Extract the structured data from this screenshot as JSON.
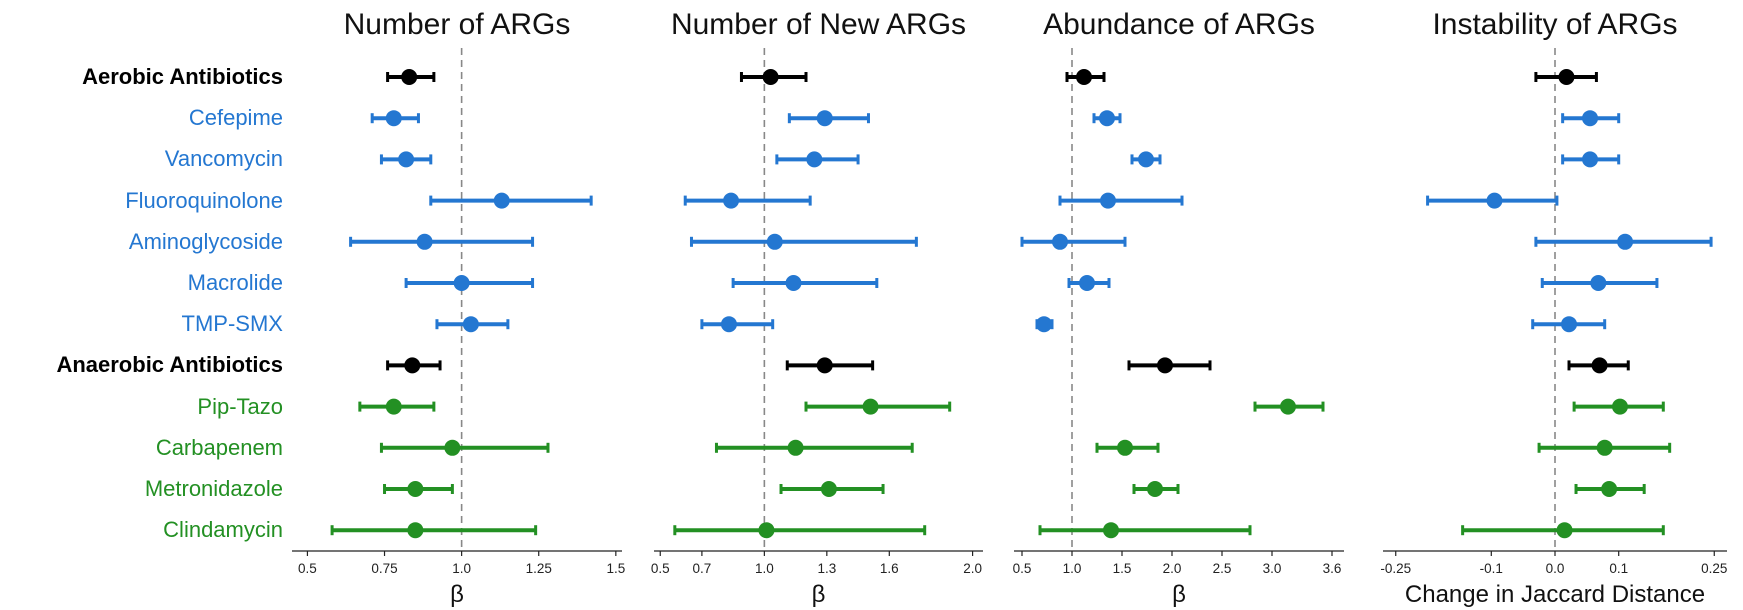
{
  "colors": {
    "group": "#000000",
    "aerobic": "#2477d1",
    "anaerobic": "#239023",
    "reference_line": "#888888",
    "axis": "#222222"
  },
  "rows": [
    {
      "label": "Aerobic Antibiotics",
      "kind": "group"
    },
    {
      "label": "Cefepime",
      "kind": "aerobic"
    },
    {
      "label": "Vancomycin",
      "kind": "aerobic"
    },
    {
      "label": "Fluoroquinolone",
      "kind": "aerobic"
    },
    {
      "label": "Aminoglycoside",
      "kind": "aerobic"
    },
    {
      "label": "Macrolide",
      "kind": "aerobic"
    },
    {
      "label": "TMP-SMX",
      "kind": "aerobic"
    },
    {
      "label": "Anaerobic Antibiotics",
      "kind": "group"
    },
    {
      "label": "Pip-Tazo",
      "kind": "anaerobic"
    },
    {
      "label": "Carbapenem",
      "kind": "anaerobic"
    },
    {
      "label": "Metronidazole",
      "kind": "anaerobic"
    },
    {
      "label": "Clindamycin",
      "kind": "anaerobic"
    }
  ],
  "chart_data": [
    {
      "type": "scatter",
      "title": "Number of ARGs",
      "xlabel": "β",
      "ticks": [
        "0.5",
        "0.75",
        "1.0",
        "1.25",
        "1.5"
      ],
      "tick_values": [
        0.5,
        0.75,
        1.0,
        1.25,
        1.5
      ],
      "xlim": [
        0.45,
        1.52
      ],
      "reference": 1.0,
      "points": [
        {
          "est": 0.83,
          "lo": 0.76,
          "hi": 0.91
        },
        {
          "est": 0.78,
          "lo": 0.71,
          "hi": 0.86
        },
        {
          "est": 0.82,
          "lo": 0.74,
          "hi": 0.9
        },
        {
          "est": 1.13,
          "lo": 0.9,
          "hi": 1.42
        },
        {
          "est": 0.88,
          "lo": 0.64,
          "hi": 1.23
        },
        {
          "est": 1.0,
          "lo": 0.82,
          "hi": 1.23
        },
        {
          "est": 1.03,
          "lo": 0.92,
          "hi": 1.15
        },
        {
          "est": 0.84,
          "lo": 0.76,
          "hi": 0.93
        },
        {
          "est": 0.78,
          "lo": 0.67,
          "hi": 0.91
        },
        {
          "est": 0.97,
          "lo": 0.74,
          "hi": 1.28
        },
        {
          "est": 0.85,
          "lo": 0.75,
          "hi": 0.97
        },
        {
          "est": 0.85,
          "lo": 0.58,
          "hi": 1.24
        }
      ]
    },
    {
      "type": "scatter",
      "title": "Number of New ARGs",
      "xlabel": "β",
      "ticks": [
        "0.5",
        "0.7",
        "1.0",
        "1.3",
        "1.6",
        "2.0"
      ],
      "tick_values": [
        0.5,
        0.7,
        1.0,
        1.3,
        1.6,
        2.0
      ],
      "xlim": [
        0.47,
        2.05
      ],
      "reference": 1.0,
      "points": [
        {
          "est": 1.03,
          "lo": 0.89,
          "hi": 1.2
        },
        {
          "est": 1.29,
          "lo": 1.12,
          "hi": 1.5
        },
        {
          "est": 1.24,
          "lo": 1.06,
          "hi": 1.45
        },
        {
          "est": 0.84,
          "lo": 0.62,
          "hi": 1.22
        },
        {
          "est": 1.05,
          "lo": 0.65,
          "hi": 1.73
        },
        {
          "est": 1.14,
          "lo": 0.85,
          "hi": 1.54
        },
        {
          "est": 0.83,
          "lo": 0.7,
          "hi": 1.04
        },
        {
          "est": 1.29,
          "lo": 1.11,
          "hi": 1.52
        },
        {
          "est": 1.51,
          "lo": 1.2,
          "hi": 1.89
        },
        {
          "est": 1.15,
          "lo": 0.77,
          "hi": 1.71
        },
        {
          "est": 1.31,
          "lo": 1.08,
          "hi": 1.57
        },
        {
          "est": 1.01,
          "lo": 0.57,
          "hi": 1.77
        }
      ]
    },
    {
      "type": "scatter",
      "title": "Abundance of ARGs",
      "xlabel": "β",
      "ticks": [
        "0.5",
        "1.0",
        "1.5",
        "2.0",
        "2.5",
        "3.0",
        "3.6"
      ],
      "tick_values": [
        0.5,
        1.0,
        1.5,
        2.0,
        2.5,
        3.0,
        3.6
      ],
      "xlim": [
        0.42,
        3.72
      ],
      "reference": 1.0,
      "points": [
        {
          "est": 1.12,
          "lo": 0.95,
          "hi": 1.32
        },
        {
          "est": 1.35,
          "lo": 1.22,
          "hi": 1.48
        },
        {
          "est": 1.74,
          "lo": 1.6,
          "hi": 1.88
        },
        {
          "est": 1.36,
          "lo": 0.88,
          "hi": 2.1
        },
        {
          "est": 0.88,
          "lo": 0.5,
          "hi": 1.53
        },
        {
          "est": 1.15,
          "lo": 0.97,
          "hi": 1.37
        },
        {
          "est": 0.72,
          "lo": 0.65,
          "hi": 0.8
        },
        {
          "est": 1.93,
          "lo": 1.57,
          "hi": 2.38
        },
        {
          "est": 3.16,
          "lo": 2.83,
          "hi": 3.51
        },
        {
          "est": 1.53,
          "lo": 1.25,
          "hi": 1.86
        },
        {
          "est": 1.83,
          "lo": 1.62,
          "hi": 2.06
        },
        {
          "est": 1.39,
          "lo": 0.68,
          "hi": 2.78
        }
      ]
    },
    {
      "type": "scatter",
      "title": "Instability of ARGs",
      "xlabel": "Change in Jaccard Distance",
      "ticks": [
        "-0.25",
        "-0.1",
        "0.0",
        "0.1",
        "0.25"
      ],
      "tick_values": [
        -0.25,
        -0.1,
        0.0,
        0.1,
        0.25
      ],
      "xlim": [
        -0.27,
        0.27
      ],
      "reference": 0.0,
      "points": [
        {
          "est": 0.018,
          "lo": -0.03,
          "hi": 0.065
        },
        {
          "est": 0.055,
          "lo": 0.012,
          "hi": 0.1
        },
        {
          "est": 0.055,
          "lo": 0.012,
          "hi": 0.1
        },
        {
          "est": -0.095,
          "lo": -0.2,
          "hi": 0.003
        },
        {
          "est": 0.11,
          "lo": -0.03,
          "hi": 0.245
        },
        {
          "est": 0.068,
          "lo": -0.02,
          "hi": 0.16
        },
        {
          "est": 0.022,
          "lo": -0.035,
          "hi": 0.078
        },
        {
          "est": 0.07,
          "lo": 0.022,
          "hi": 0.115
        },
        {
          "est": 0.102,
          "lo": 0.03,
          "hi": 0.17
        },
        {
          "est": 0.078,
          "lo": -0.025,
          "hi": 0.18
        },
        {
          "est": 0.085,
          "lo": 0.033,
          "hi": 0.14
        },
        {
          "est": 0.015,
          "lo": -0.145,
          "hi": 0.17
        }
      ]
    }
  ]
}
